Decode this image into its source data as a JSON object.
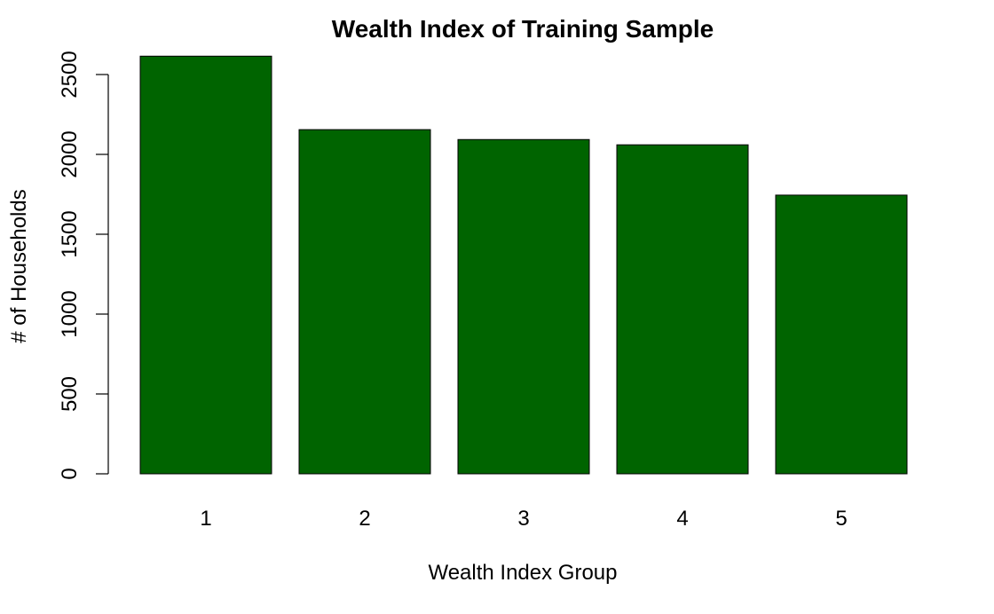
{
  "chart_data": {
    "type": "bar",
    "title": "Wealth Index of Training Sample",
    "xlabel": "Wealth Index Group",
    "ylabel": "# of Households",
    "categories": [
      "1",
      "2",
      "3",
      "4",
      "5"
    ],
    "values": [
      2615,
      2155,
      2093,
      2060,
      1745
    ],
    "ylim": [
      0,
      2500
    ],
    "yticks": [
      0,
      500,
      1000,
      1500,
      2000,
      2500
    ],
    "grid": false,
    "bar_color": "#006400",
    "bar_border_color": "#000000"
  }
}
